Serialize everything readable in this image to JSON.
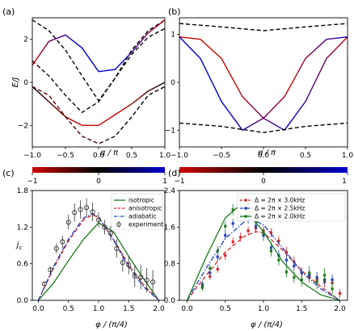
{
  "chart_data": [
    {
      "panel": "(a)",
      "type": "line",
      "xlabel": "q / π",
      "ylabel": "E/J",
      "xlim": [
        -1.0,
        1.0
      ],
      "ylim": [
        -3.0,
        3.0
      ],
      "xticks": [
        "−1.0",
        "−0.5",
        "0.0",
        "0.5",
        "1.0"
      ],
      "yticks": [
        "−2",
        "0",
        "2"
      ],
      "series": [
        {
          "style": "solid",
          "x": [
            -1.0,
            -0.75,
            -0.5,
            -0.25,
            0.0,
            0.25,
            0.5,
            0.75,
            1.0
          ],
          "y": [
            -0.2,
            -0.9,
            -1.6,
            -2.0,
            -2.0,
            -1.5,
            -1.0,
            -0.4,
            0.0
          ]
        },
        {
          "style": "dashed",
          "x": [
            -1.0,
            -0.75,
            -0.5,
            -0.25,
            0.0,
            0.25,
            0.5,
            0.75,
            1.0
          ],
          "y": [
            -0.2,
            -0.6,
            -1.6,
            -2.5,
            -2.85,
            -2.5,
            -1.6,
            -0.6,
            -0.2
          ]
        },
        {
          "style": "dashed",
          "x": [
            -1.0,
            -0.75,
            -0.5,
            -0.25,
            0.0,
            0.25,
            0.5,
            0.75,
            1.0
          ],
          "y": [
            1.0,
            0.3,
            -0.6,
            -1.4,
            -0.9,
            0.2,
            1.3,
            2.1,
            2.5
          ]
        },
        {
          "style": "dashed",
          "x": [
            -1.0,
            -0.75,
            -0.5,
            -0.25,
            0.0,
            0.25,
            0.5,
            0.75,
            1.0
          ],
          "y": [
            2.9,
            2.4,
            1.5,
            0.3,
            -0.85,
            0.2,
            1.5,
            2.4,
            2.9
          ]
        },
        {
          "style": "solid",
          "x": [
            -1.0,
            -0.75,
            -0.5,
            -0.25,
            0.0,
            0.25,
            0.5,
            0.75,
            1.0
          ],
          "y": [
            0.8,
            1.9,
            2.2,
            1.6,
            0.5,
            0.6,
            1.4,
            2.3,
            2.9
          ]
        }
      ],
      "colorbar": {
        "min": "−1",
        "mid": "0",
        "max": "1",
        "colors": [
          "#cc0000",
          "#000000",
          "#0000cc"
        ]
      }
    },
    {
      "panel": "(b)",
      "type": "line",
      "xlabel": "q / π",
      "ylabel": "",
      "xlim": [
        -1.0,
        1.0
      ],
      "ylim": [
        -1.35,
        1.35
      ],
      "xticks": [
        "−1.0",
        "−0.5",
        "0.0",
        "0.5",
        "1.0"
      ],
      "yticks": [
        "−1",
        "0",
        "1"
      ],
      "series": [
        {
          "style": "dashed",
          "x": [
            -1.0,
            -0.5,
            0.0,
            0.5,
            1.0
          ],
          "y": [
            1.23,
            1.16,
            1.08,
            1.16,
            1.23
          ]
        },
        {
          "style": "solid",
          "x": [
            -1.0,
            -0.75,
            -0.5,
            -0.25,
            0.0,
            0.25,
            0.5,
            0.75,
            1.0
          ],
          "y": [
            0.95,
            0.9,
            0.5,
            -0.3,
            -0.75,
            -1.0,
            -0.4,
            0.5,
            0.95
          ]
        },
        {
          "style": "solid",
          "x": [
            -1.0,
            -0.75,
            -0.5,
            -0.25,
            0.0,
            0.25,
            0.5,
            0.75,
            1.0
          ],
          "y": [
            0.95,
            0.5,
            -0.4,
            -1.0,
            -0.75,
            -0.3,
            0.5,
            0.9,
            0.95
          ]
        },
        {
          "style": "dashed",
          "x": [
            -1.0,
            -0.5,
            0.0,
            0.5,
            1.0
          ],
          "y": [
            -0.85,
            -0.92,
            -1.05,
            -0.92,
            -0.85
          ]
        }
      ],
      "colorbar": {
        "min": "−1",
        "mid": "0",
        "max": "1",
        "colors": [
          "#cc0000",
          "#000000",
          "#0000cc"
        ]
      }
    },
    {
      "panel": "(c)",
      "type": "line",
      "xlabel": "φ / (π/4)",
      "ylabel": "j",
      "ylabel_sub": "c",
      "xlim": [
        -0.1,
        2.1
      ],
      "ylim": [
        0.0,
        1.8
      ],
      "xticks": [
        "0.0",
        "0.5",
        "1.0",
        "1.5",
        "2.0"
      ],
      "yticks": [
        "0.0",
        "0.6",
        "1.2",
        "1.8"
      ],
      "legend": {
        "placement": "top-right",
        "entries": [
          "isotropic",
          "anisotropic",
          "adiabatic",
          "experiment"
        ]
      },
      "series": [
        {
          "name": "isotropic",
          "color": "#1a7a1a",
          "style": "solid",
          "x": [
            0.0,
            0.25,
            0.5,
            0.75,
            1.0,
            1.25,
            1.5,
            1.75,
            2.0
          ],
          "y": [
            0.0,
            0.28,
            0.65,
            1.0,
            1.27,
            1.12,
            0.72,
            0.35,
            0.0
          ]
        },
        {
          "name": "anisotropic",
          "color": "#d62728",
          "style": "dashed",
          "x": [
            0.0,
            0.25,
            0.5,
            0.75,
            0.9,
            1.0,
            1.25,
            1.5,
            1.75,
            2.0
          ],
          "y": [
            0.0,
            0.52,
            0.97,
            1.32,
            1.4,
            1.36,
            1.0,
            0.58,
            0.25,
            0.0
          ]
        },
        {
          "name": "adiabatic",
          "color": "#1f3fbf",
          "style": "dashdot",
          "x": [
            0.0,
            0.25,
            0.5,
            0.75,
            0.9,
            1.0,
            1.25,
            1.5,
            1.75,
            2.0
          ],
          "y": [
            0.0,
            0.55,
            1.0,
            1.35,
            1.42,
            1.37,
            0.98,
            0.55,
            0.22,
            0.0
          ]
        },
        {
          "name": "experiment",
          "color": "#333333",
          "style": "markers",
          "x": [
            0.1,
            0.2,
            0.3,
            0.4,
            0.5,
            0.6,
            0.7,
            0.8,
            0.9,
            1.0,
            1.1,
            1.2,
            1.3,
            1.4,
            1.5,
            1.6,
            1.7,
            1.8,
            1.9
          ],
          "y": [
            0.27,
            0.5,
            0.85,
            0.96,
            1.28,
            1.44,
            1.49,
            1.52,
            1.45,
            1.32,
            1.2,
            1.1,
            0.85,
            0.62,
            0.58,
            0.4,
            0.38,
            0.33,
            0.3
          ],
          "err": [
            0.03,
            0.05,
            0.08,
            0.1,
            0.12,
            0.15,
            0.15,
            0.15,
            0.15,
            0.12,
            0.12,
            0.12,
            0.15,
            0.15,
            0.15,
            0.18,
            0.2,
            0.2,
            0.2
          ]
        }
      ]
    },
    {
      "panel": "(d)",
      "type": "line",
      "xlabel": "φ / (π/4)",
      "ylabel": "",
      "xlim": [
        -0.1,
        2.1
      ],
      "ylim": [
        0.0,
        2.4
      ],
      "xticks": [
        "0.0",
        "0.5",
        "1.0",
        "1.5",
        "2.0"
      ],
      "yticks": [
        "0.0",
        "0.8",
        "1.6",
        "2.4"
      ],
      "legend": {
        "placement": "top-right",
        "entries": [
          "Δ = 2π × 3.0kHz",
          "Δ = 2π × 2.5kHz",
          "Δ = 2π × 2.0kHz"
        ]
      },
      "series": [
        {
          "name": "Δ = 2π × 3.0kHz",
          "color": "#d62728",
          "fit_style": "dashed",
          "fit_x": [
            0.0,
            0.25,
            0.5,
            0.75,
            0.9,
            1.0,
            1.25,
            1.5,
            1.75,
            2.0
          ],
          "fit_y": [
            0.0,
            0.55,
            1.05,
            1.4,
            1.5,
            1.48,
            1.1,
            0.65,
            0.3,
            0.0
          ],
          "x": [
            0.2,
            0.3,
            0.4,
            0.5,
            0.6,
            0.7,
            0.8,
            0.9,
            1.0,
            1.1,
            1.2,
            1.3,
            1.4,
            1.5,
            1.6,
            1.7,
            1.8,
            1.9,
            2.0
          ],
          "y": [
            0.3,
            0.52,
            0.68,
            0.98,
            1.28,
            1.38,
            1.52,
            1.58,
            1.52,
            1.48,
            1.3,
            1.05,
            0.84,
            0.6,
            0.5,
            0.45,
            0.4,
            0.38,
            0.15
          ],
          "err": [
            0.08,
            0.08,
            0.08,
            0.1,
            0.1,
            0.1,
            0.1,
            0.1,
            0.1,
            0.1,
            0.1,
            0.12,
            0.12,
            0.12,
            0.12,
            0.12,
            0.12,
            0.12,
            0.1
          ]
        },
        {
          "name": "Δ = 2π × 2.5kHz",
          "color": "#1f3fbf",
          "fit_style": "dashdot",
          "fit_x": [
            0.0,
            0.25,
            0.5,
            0.75,
            0.85,
            1.0,
            1.25,
            1.5,
            1.75,
            2.0
          ],
          "fit_y": [
            0.0,
            0.7,
            1.35,
            1.72,
            1.77,
            1.65,
            1.15,
            0.62,
            0.25,
            0.0
          ],
          "x": [
            0.2,
            0.3,
            0.4,
            0.5,
            0.6,
            0.7,
            0.8,
            0.9,
            1.0,
            1.1,
            1.2,
            1.3,
            1.4,
            1.5,
            1.6,
            1.7,
            1.8,
            1.9
          ],
          "y": [
            0.35,
            0.6,
            0.95,
            1.42,
            1.68,
            1.82,
            1.78,
            1.62,
            1.42,
            1.15,
            0.98,
            0.88,
            0.75,
            0.6,
            0.55,
            0.5,
            0.45,
            0.45
          ],
          "err": [
            0.08,
            0.08,
            0.1,
            0.1,
            0.1,
            0.1,
            0.1,
            0.1,
            0.12,
            0.12,
            0.12,
            0.12,
            0.12,
            0.12,
            0.12,
            0.12,
            0.12,
            0.12
          ]
        },
        {
          "name": "Δ = 2π × 2.0kHz",
          "color": "#1a7a1a",
          "fit_style": "solid",
          "fit_x": [
            0.0,
            0.25,
            0.5,
            0.65,
            0.75,
            1.0,
            1.25,
            1.5,
            1.75,
            2.0
          ],
          "fit_y": [
            0.0,
            0.95,
            1.8,
            2.02,
            2.0,
            1.5,
            0.85,
            0.4,
            0.12,
            0.0
          ],
          "x": [
            0.2,
            0.3,
            0.4,
            0.5,
            0.6,
            0.7,
            0.8,
            0.9,
            1.0,
            1.1,
            1.2,
            1.3,
            1.4,
            1.5,
            1.6,
            1.7,
            1.8,
            1.9
          ],
          "y": [
            0.28,
            0.7,
            1.08,
            1.62,
            1.98,
            2.18,
            2.1,
            1.72,
            1.48,
            1.08,
            0.88,
            0.62,
            0.5,
            0.45,
            0.6,
            0.4,
            0.55,
            0.25
          ],
          "err": [
            0.08,
            0.08,
            0.1,
            0.1,
            0.12,
            0.12,
            0.12,
            0.12,
            0.12,
            0.12,
            0.12,
            0.12,
            0.12,
            0.15,
            0.15,
            0.15,
            0.15,
            0.15
          ]
        }
      ]
    }
  ]
}
